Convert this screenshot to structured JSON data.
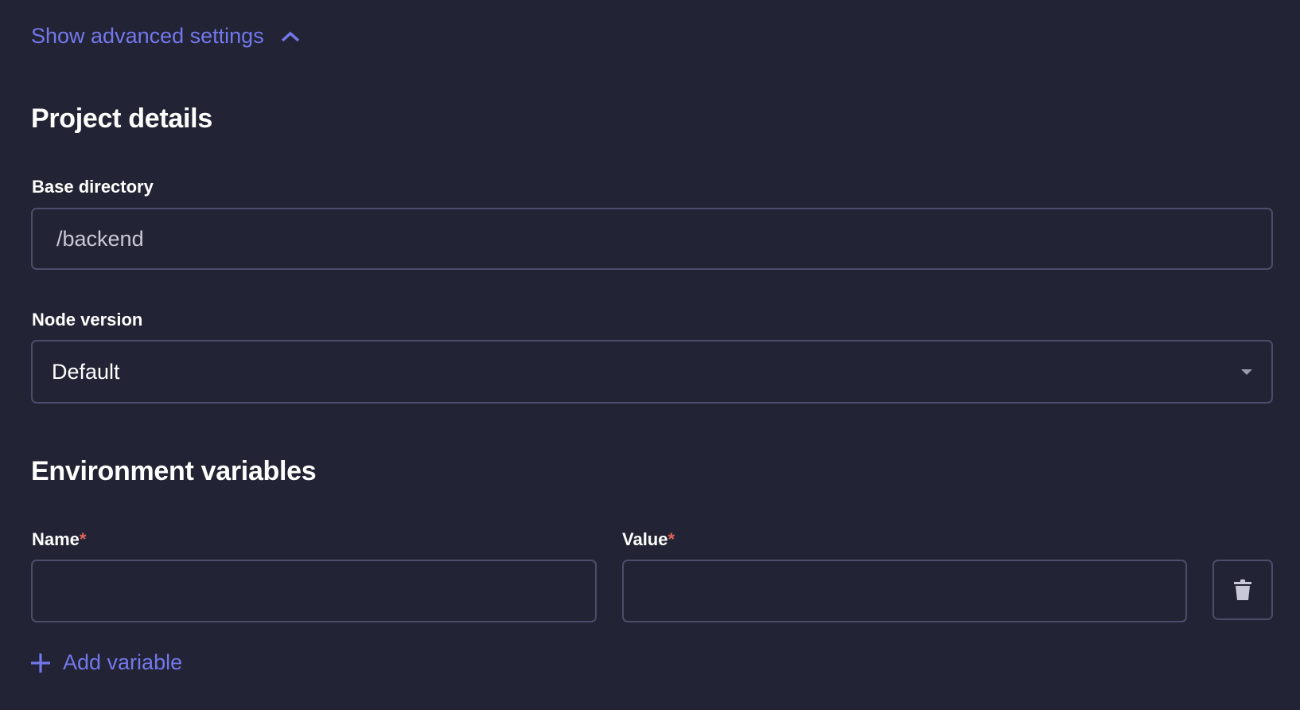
{
  "advanced_toggle": {
    "label": "Show advanced settings",
    "icon": "chevron-up-icon"
  },
  "project_details": {
    "heading": "Project details",
    "base_directory": {
      "label": "Base directory",
      "value": "/backend"
    },
    "node_version": {
      "label": "Node version",
      "value": "Default"
    }
  },
  "environment": {
    "heading": "Environment variables",
    "name_label": "Name",
    "value_label": "Value",
    "required_mark": "*",
    "name_value": "",
    "value_value": "",
    "add_label": "Add variable"
  },
  "colors": {
    "background": "#222334",
    "accent": "#7378ec",
    "border": "#4c4d6a",
    "required": "#e0655a"
  }
}
